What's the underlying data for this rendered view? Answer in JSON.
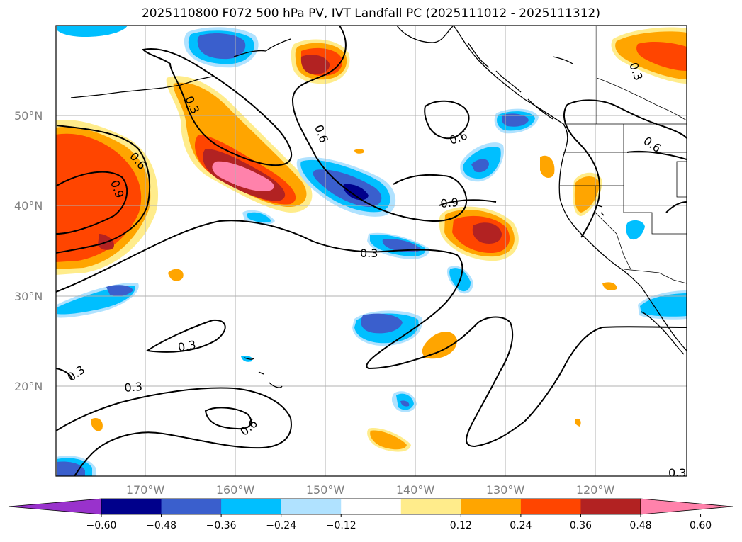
{
  "title": "2025110800 F072 500 hPa PV, IVT Landfall PC (2025111012 - 2025111312)",
  "map": {
    "lon_range": [
      180,
      110
    ],
    "lat_range": [
      10,
      60
    ],
    "lat_ticks": [
      "50°N",
      "40°N",
      "30°N",
      "20°N"
    ],
    "lon_ticks": [
      "170°W",
      "160°W",
      "150°W",
      "140°W",
      "130°W",
      "120°W"
    ],
    "contour_labels": [
      {
        "text": "0.3",
        "name": "contour-label-0.3-nw"
      },
      {
        "text": "0.6",
        "name": "contour-label-0.6-w"
      },
      {
        "text": "0.9",
        "name": "contour-label-0.9-w"
      },
      {
        "text": "0.6",
        "name": "contour-label-0.6-central"
      },
      {
        "text": "0.6",
        "name": "contour-label-0.6-east"
      },
      {
        "text": "0.6",
        "name": "contour-label-0.6-ne"
      },
      {
        "text": "0.3",
        "name": "contour-label-0.3-ne"
      },
      {
        "text": "0.9",
        "name": "contour-label-0.9-central"
      },
      {
        "text": "0.3",
        "name": "contour-label-0.3-central"
      },
      {
        "text": "0.3",
        "name": "contour-label-0.3-south"
      },
      {
        "text": "0.3",
        "name": "contour-label-0.3-sw"
      },
      {
        "text": "0.3",
        "name": "contour-label-0.3-sw2"
      },
      {
        "text": "0.6",
        "name": "contour-label-0.6-south"
      },
      {
        "text": "0.3",
        "name": "contour-label-0.3-se"
      }
    ]
  },
  "colorbar": {
    "ticks": [
      "−0.60",
      "−0.48",
      "−0.36",
      "−0.24",
      "−0.12",
      "0.12",
      "0.24",
      "0.36",
      "0.48",
      "0.60"
    ],
    "colors": [
      "#9932cc",
      "#00008b",
      "#3a5fcd",
      "#00bfff",
      "#b0e2ff",
      "#ffffff",
      "#ffec8b",
      "#ffa500",
      "#ff4500",
      "#b22222",
      "#ff82ab"
    ]
  }
}
